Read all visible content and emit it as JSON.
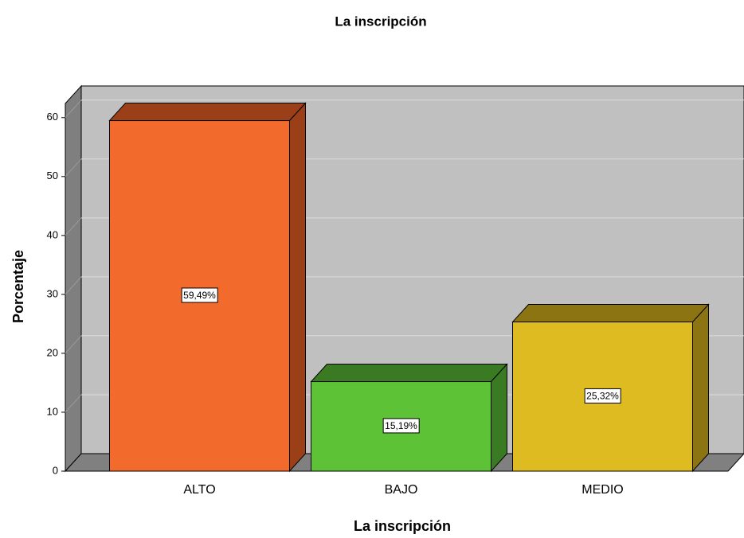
{
  "chart_data": {
    "type": "bar3d",
    "title": "La inscripción",
    "x_label": "La inscripción",
    "y_label": "Porcentaje",
    "categories": [
      "ALTO",
      "BAJO",
      "MEDIO"
    ],
    "values": [
      59.49,
      15.19,
      25.32
    ],
    "value_labels": [
      "59,49%",
      "15,19%",
      "25,32%"
    ],
    "colors": [
      "#f26a2c",
      "#5dc236",
      "#dfbb22"
    ],
    "side_colors": [
      "#9a3f17",
      "#3a7a22",
      "#8d7412"
    ],
    "ylim": [
      0,
      62.4
    ],
    "yticks": [
      0,
      10,
      20,
      30,
      40,
      50,
      60
    ],
    "grid": true
  }
}
